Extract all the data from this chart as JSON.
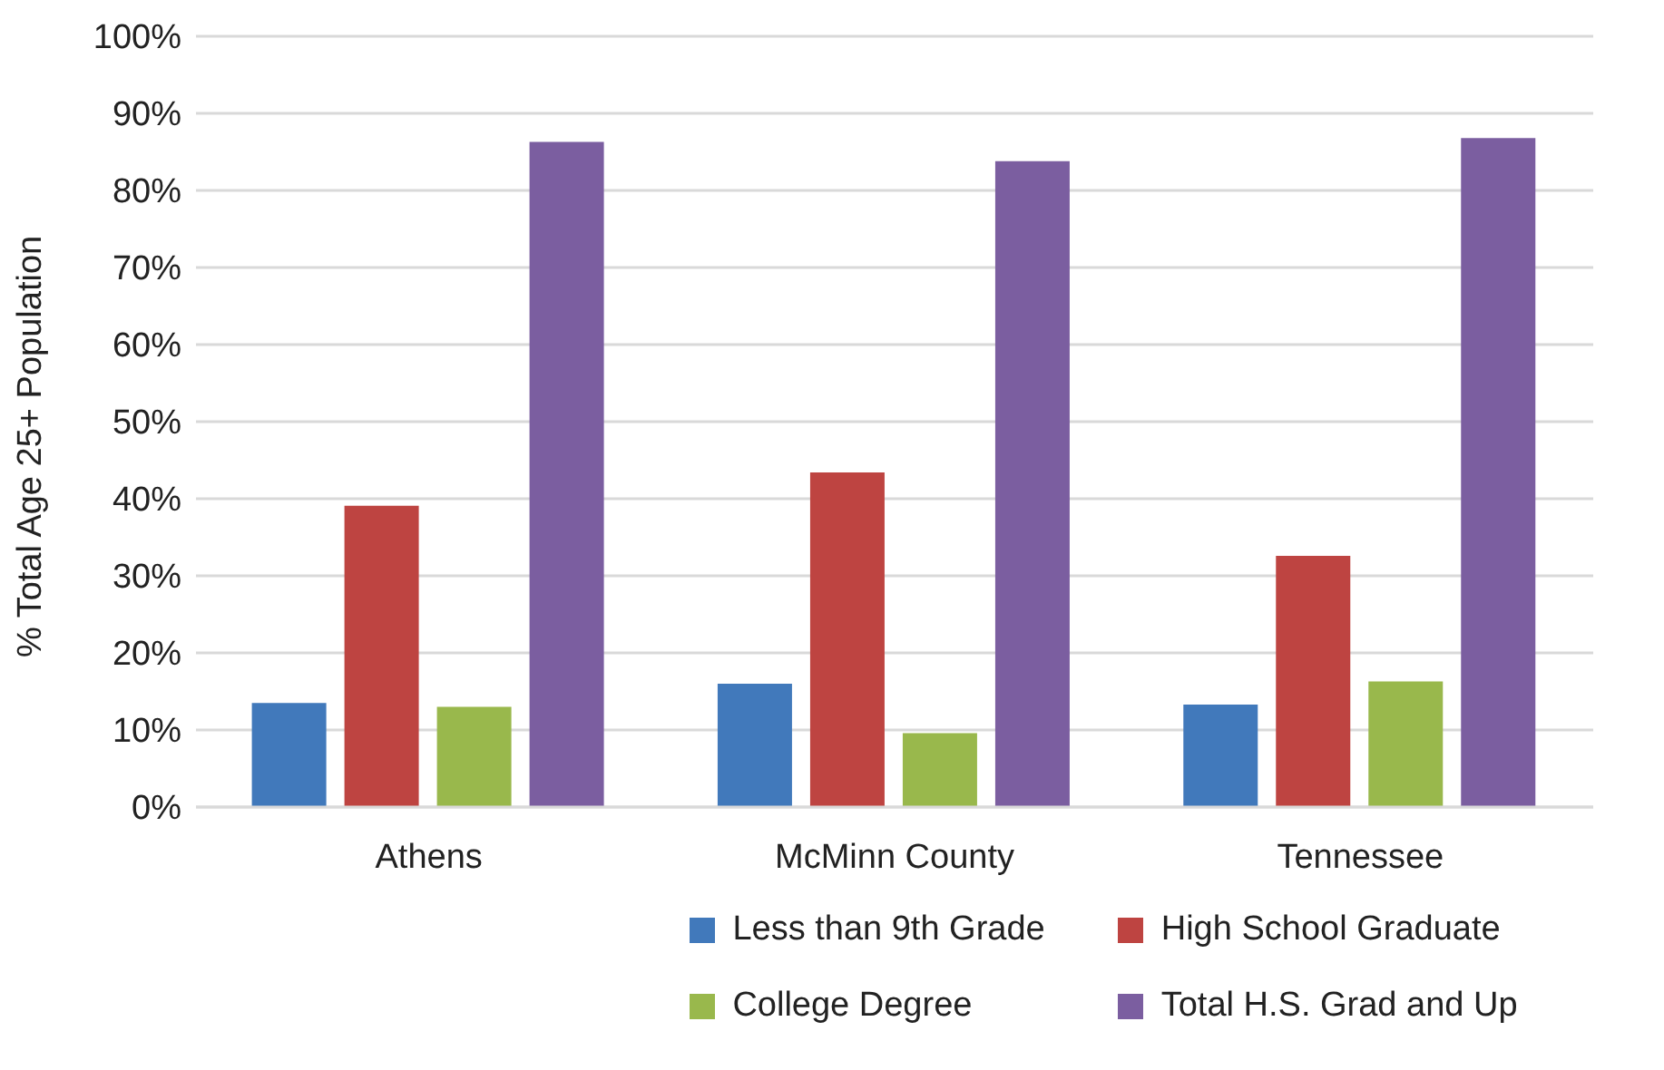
{
  "chart_data": {
    "type": "bar",
    "ylabel": "% Total Age 25+ Population",
    "categories": [
      "Athens",
      "McMinn County",
      "Tennessee"
    ],
    "series": [
      {
        "name": "Less than 9th Grade",
        "color": "#4179bb",
        "values": [
          13.5,
          16.0,
          13.3
        ]
      },
      {
        "name": "High School Graduate",
        "color": "#be4441",
        "values": [
          39.1,
          43.4,
          32.6
        ]
      },
      {
        "name": "College Degree",
        "color": "#99b84c",
        "values": [
          13.0,
          9.6,
          16.3
        ]
      },
      {
        "name": "Total H.S. Grad and Up",
        "color": "#7b5ea0",
        "values": [
          86.3,
          83.8,
          86.8
        ]
      }
    ],
    "ylim": [
      0,
      100
    ],
    "yticks": [
      {
        "value": 0,
        "label": "0%"
      },
      {
        "value": 10,
        "label": "10%"
      },
      {
        "value": 20,
        "label": "20%"
      },
      {
        "value": 30,
        "label": "30%"
      },
      {
        "value": 40,
        "label": "40%"
      },
      {
        "value": 50,
        "label": "50%"
      },
      {
        "value": 60,
        "label": "60%"
      },
      {
        "value": 70,
        "label": "70%"
      },
      {
        "value": 80,
        "label": "80%"
      },
      {
        "value": 90,
        "label": "90%"
      },
      {
        "value": 100,
        "label": "100%"
      }
    ],
    "grid": "y",
    "legend": "bottom"
  }
}
